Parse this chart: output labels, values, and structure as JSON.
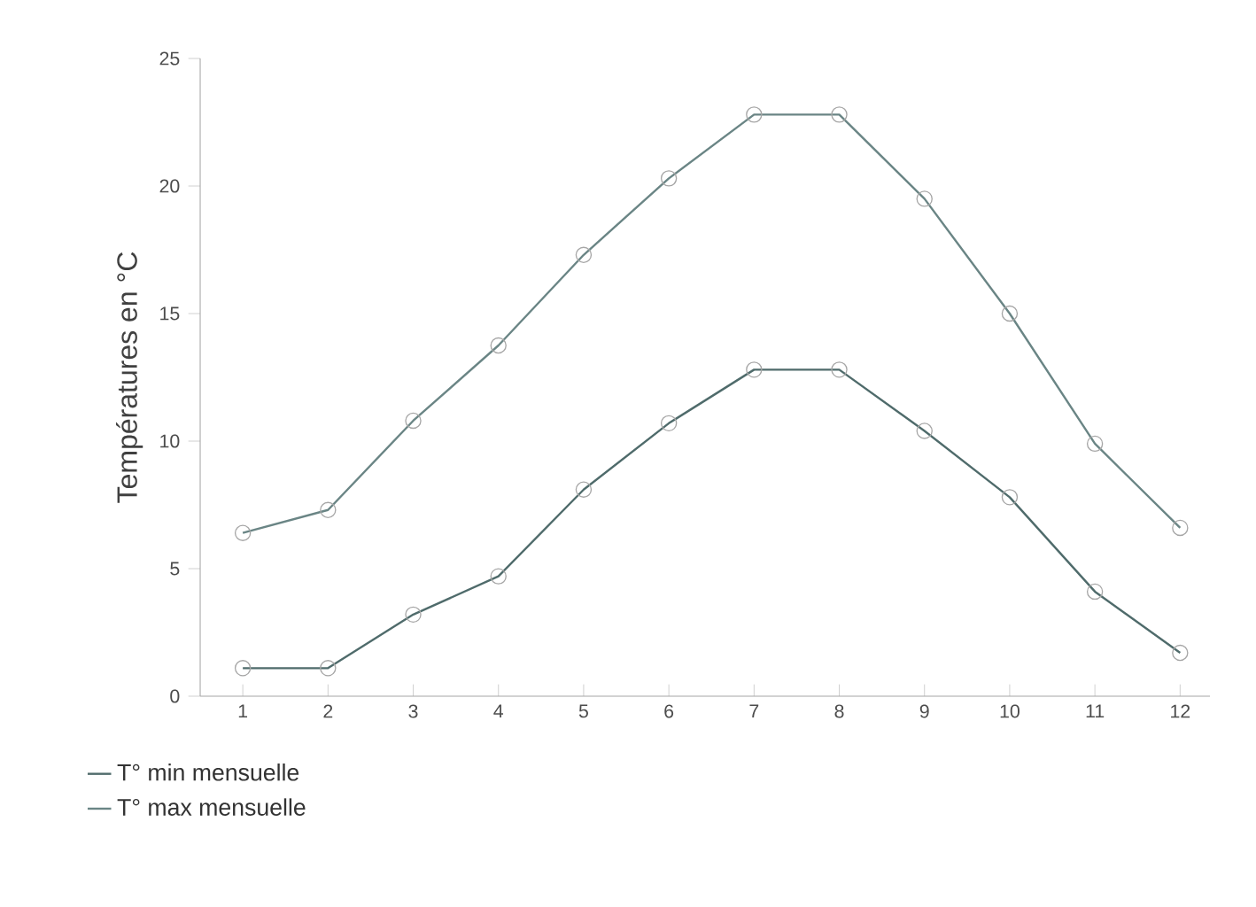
{
  "chart_data": {
    "type": "line",
    "ylabel": "Températures en °C",
    "x": [
      1,
      2,
      3,
      4,
      5,
      6,
      7,
      8,
      9,
      10,
      11,
      12
    ],
    "xlim": [
      0.5,
      12.35
    ],
    "ylim": [
      0,
      25
    ],
    "xticks": [
      1,
      2,
      3,
      4,
      5,
      6,
      7,
      8,
      9,
      10,
      11,
      12
    ],
    "yticks": [
      0,
      5,
      10,
      15,
      20,
      25
    ],
    "marker": "circle",
    "legend": "bottom left",
    "series": [
      {
        "name": "T° min mensuelle",
        "color": "#4f6b6b",
        "values": [
          1.1,
          1.1,
          3.2,
          4.7,
          8.1,
          10.7,
          12.8,
          12.8,
          10.4,
          7.8,
          4.1,
          1.7
        ]
      },
      {
        "name": "T° max mensuelle",
        "color": "#6a8585",
        "values": [
          6.4,
          7.3,
          10.8,
          13.75,
          17.3,
          20.3,
          22.8,
          22.8,
          19.5,
          15.0,
          9.9,
          6.6
        ]
      }
    ]
  }
}
